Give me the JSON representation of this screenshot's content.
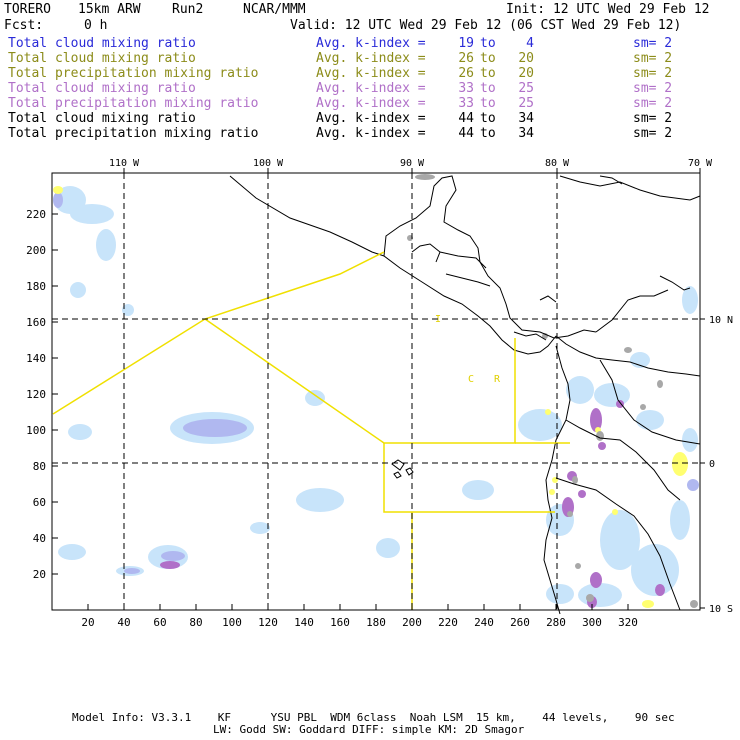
{
  "header": {
    "model": "TORERO",
    "resolution": "15km ARW",
    "run": "Run2",
    "org": "NCAR/MMM",
    "init": "Init: 12 UTC Wed 29 Feb 12",
    "fcst_label": "Fcst:",
    "fcst_value": "0 h",
    "valid": "Valid: 12 UTC Wed 29 Feb 12 (06 CST Wed 29 Feb 12)"
  },
  "fields": [
    {
      "name": "Total cloud mixing ratio",
      "stat": "Avg. k-index =",
      "k1": "19",
      "to": "to",
      "k2": "4",
      "sm": "sm= 2",
      "color": "#2a2ad8"
    },
    {
      "name": "Total cloud mixing ratio",
      "stat": "Avg. k-index =",
      "k1": "26",
      "to": "to",
      "k2": "20",
      "sm": "sm= 2",
      "color": "#8c8c1a"
    },
    {
      "name": "Total precipitation mixing ratio",
      "stat": "Avg. k-index =",
      "k1": "26",
      "to": "to",
      "k2": "20",
      "sm": "sm= 2",
      "color": "#8c8c1a"
    },
    {
      "name": "Total cloud mixing ratio",
      "stat": "Avg. k-index =",
      "k1": "33",
      "to": "to",
      "k2": "25",
      "sm": "sm= 2",
      "color": "#b070c8"
    },
    {
      "name": "Total precipitation mixing ratio",
      "stat": "Avg. k-index =",
      "k1": "33",
      "to": "to",
      "k2": "25",
      "sm": "sm= 2",
      "color": "#b070c8"
    },
    {
      "name": "Total cloud mixing ratio",
      "stat": "Avg. k-index =",
      "k1": "44",
      "to": "to",
      "k2": "34",
      "sm": "sm= 2",
      "color": "#000000"
    },
    {
      "name": "Total precipitation mixing ratio",
      "stat": "Avg. k-index =",
      "k1": "44",
      "to": "to",
      "k2": "34",
      "sm": "sm= 2",
      "color": "#000000"
    }
  ],
  "map": {
    "lon_labels": [
      "110 W",
      "100 W",
      "90 W",
      "80 W",
      "70 W"
    ],
    "lat_labels": [
      "10 N",
      "0",
      "10 S"
    ],
    "grid_x_ticks": [
      "20",
      "40",
      "60",
      "80",
      "100",
      "120",
      "140",
      "160",
      "180",
      "200",
      "220",
      "240",
      "260",
      "280",
      "300",
      "320"
    ],
    "grid_y_ticks": [
      "20",
      "40",
      "60",
      "80",
      "100",
      "120",
      "140",
      "160",
      "180",
      "200",
      "220"
    ],
    "region_letters": [
      "C",
      "R"
    ],
    "region_mark": "I",
    "colors": {
      "light": "#c8e4fa",
      "blue": "#b0b8f0",
      "purple": "#b070c8",
      "yellow": "#ffff70",
      "grey": "#a8a8a8",
      "box": "#f0e000"
    }
  },
  "footer": {
    "line1": "Model Info: V3.3.1    KF      YSU PBL  WDM 6class  Noah LSM  15 km,    44 levels,    90 sec",
    "line2": "LW: Godd SW: Goddard DIFF: simple KM: 2D Smagor"
  }
}
